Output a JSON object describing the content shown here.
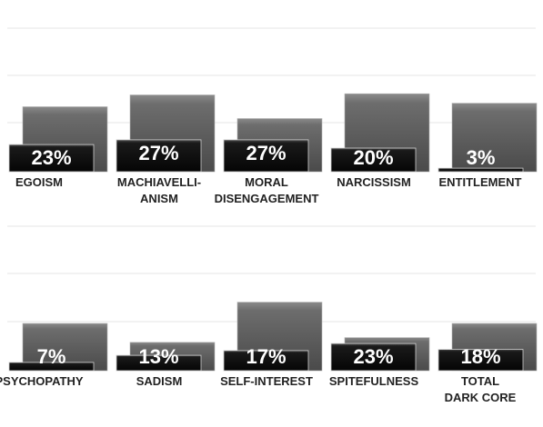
{
  "chart_data": {
    "type": "bar",
    "rows": [
      {
        "categories": [
          {
            "label": [
              "EGOISM"
            ],
            "value": 23,
            "value_label": "23%",
            "back": 55
          },
          {
            "label": [
              "MACHIAVELLI-",
              "ANISM"
            ],
            "value": 27,
            "value_label": "27%",
            "back": 65
          },
          {
            "label": [
              "MORAL",
              "DISENGAGEMENT"
            ],
            "value": 27,
            "value_label": "27%",
            "back": 45
          },
          {
            "label": [
              "NARCISSISM"
            ],
            "value": 20,
            "value_label": "20%",
            "back": 66
          },
          {
            "label": [
              "ENTITLEMENT"
            ],
            "value": 3,
            "value_label": "3%",
            "back": 58
          }
        ]
      },
      {
        "categories": [
          {
            "label": [
              "PSYCHOPATHY"
            ],
            "value": 7,
            "value_label": "7%",
            "back": 40
          },
          {
            "label": [
              "SADISM"
            ],
            "value": 13,
            "value_label": "13%",
            "back": 24
          },
          {
            "label": [
              "SELF-INTEREST"
            ],
            "value": 17,
            "value_label": "17%",
            "back": 58
          },
          {
            "label": [
              "SPITEFULNESS"
            ],
            "value": 23,
            "value_label": "23%",
            "back": 28
          },
          {
            "label": [
              "TOTAL",
              "DARK CORE"
            ],
            "value": 18,
            "value_label": "18%",
            "back": 40
          }
        ]
      }
    ],
    "ylim": [
      0,
      100
    ],
    "grid": true,
    "colors": {
      "front_bar": "#111111",
      "back_bar": "#666666",
      "grid": "#e6e6e6",
      "text": "#222222",
      "value_text": "#ffffff"
    }
  }
}
